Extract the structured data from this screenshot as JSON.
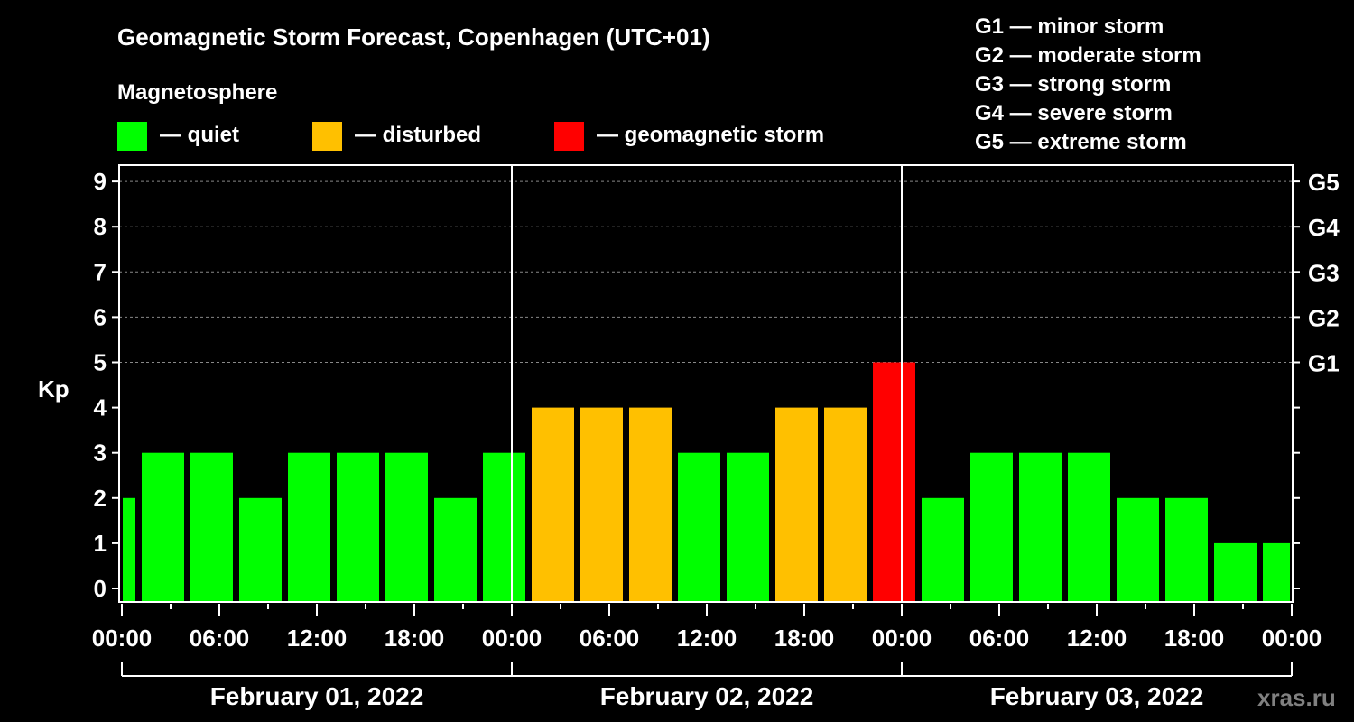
{
  "chart_data": {
    "type": "bar",
    "title": "Geomagnetic Storm Forecast, Copenhagen (UTC+01)",
    "legend_title": "Magnetosphere",
    "legend": [
      {
        "label": "— quiet",
        "color": "#00ff00"
      },
      {
        "label": "— disturbed",
        "color": "#ffc000"
      },
      {
        "label": "— geomagnetic storm",
        "color": "#ff0000"
      }
    ],
    "storm_scale": [
      "G1 — minor storm",
      "G2 — moderate storm",
      "G3 — strong storm",
      "G4 — severe storm",
      "G5 — extreme storm"
    ],
    "ylabel": "Kp",
    "ylim": [
      0,
      9
    ],
    "yticks": [
      "0",
      "1",
      "2",
      "3",
      "4",
      "5",
      "6",
      "7",
      "8",
      "9"
    ],
    "right_ticks": [
      {
        "kp": 5,
        "label": "G1"
      },
      {
        "kp": 6,
        "label": "G2"
      },
      {
        "kp": 7,
        "label": "G3"
      },
      {
        "kp": 8,
        "label": "G4"
      },
      {
        "kp": 9,
        "label": "G5"
      }
    ],
    "grid": "dashed at Kp 5-9",
    "xlim_hours": [
      0,
      72
    ],
    "xtick_labels": [
      "00:00",
      "06:00",
      "12:00",
      "18:00",
      "00:00",
      "06:00",
      "12:00",
      "18:00",
      "00:00",
      "06:00",
      "12:00",
      "18:00",
      "00:00"
    ],
    "days": [
      "February 01, 2022",
      "February 02, 2022",
      "February 03, 2022"
    ],
    "bars": [
      {
        "start": 0,
        "end": 1,
        "kp": 2
      },
      {
        "start": 1,
        "end": 4,
        "kp": 3
      },
      {
        "start": 4,
        "end": 7,
        "kp": 3
      },
      {
        "start": 7,
        "end": 10,
        "kp": 2
      },
      {
        "start": 10,
        "end": 13,
        "kp": 3
      },
      {
        "start": 13,
        "end": 16,
        "kp": 3
      },
      {
        "start": 16,
        "end": 19,
        "kp": 3
      },
      {
        "start": 19,
        "end": 22,
        "kp": 2
      },
      {
        "start": 22,
        "end": 25,
        "kp": 3
      },
      {
        "start": 25,
        "end": 28,
        "kp": 4
      },
      {
        "start": 28,
        "end": 31,
        "kp": 4
      },
      {
        "start": 31,
        "end": 34,
        "kp": 4
      },
      {
        "start": 34,
        "end": 37,
        "kp": 3
      },
      {
        "start": 37,
        "end": 40,
        "kp": 3
      },
      {
        "start": 40,
        "end": 43,
        "kp": 4
      },
      {
        "start": 43,
        "end": 46,
        "kp": 4
      },
      {
        "start": 46,
        "end": 49,
        "kp": 5
      },
      {
        "start": 49,
        "end": 52,
        "kp": 2
      },
      {
        "start": 52,
        "end": 55,
        "kp": 3
      },
      {
        "start": 55,
        "end": 58,
        "kp": 3
      },
      {
        "start": 58,
        "end": 61,
        "kp": 3
      },
      {
        "start": 61,
        "end": 64,
        "kp": 2
      },
      {
        "start": 64,
        "end": 67,
        "kp": 2
      },
      {
        "start": 67,
        "end": 70,
        "kp": 1
      },
      {
        "start": 70,
        "end": 72,
        "kp": 1
      }
    ],
    "watermark": "xras.ru"
  }
}
